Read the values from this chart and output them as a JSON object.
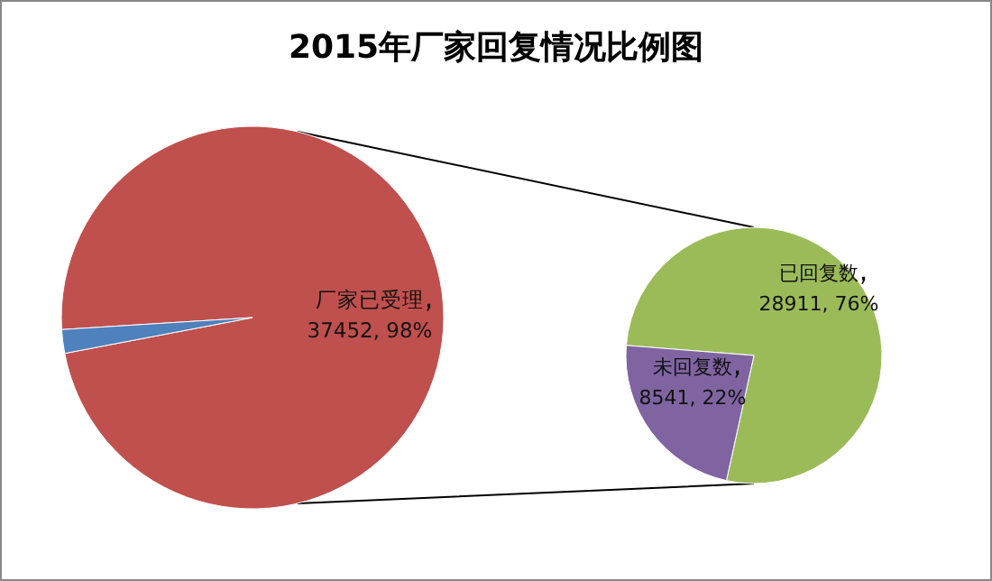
{
  "chart_data": [
    {
      "type": "pie",
      "title": "2015年厂家回复情况比例图",
      "categories": [
        "厂家已受理",
        null
      ],
      "values": [
        98,
        2
      ],
      "colors": [
        "#c0504d",
        "#4f81bd"
      ],
      "value_labels": [
        "37452, 98%",
        null
      ]
    },
    {
      "type": "pie",
      "categories": [
        "已回复数",
        "未回复数"
      ],
      "values": [
        28911,
        8541
      ],
      "colors": [
        "#9bbb59",
        "#8064a2"
      ],
      "value_labels": [
        "28911, 76%",
        "8541, 22%"
      ]
    }
  ]
}
